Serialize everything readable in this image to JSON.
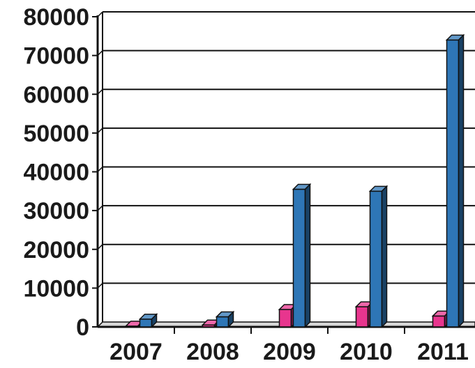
{
  "chart_data": {
    "type": "bar",
    "title": "",
    "xlabel": "",
    "ylabel": "",
    "categories": [
      "2007",
      "2008",
      "2009",
      "2010",
      "2011"
    ],
    "series": [
      {
        "color": "#e8358e",
        "values": [
          200,
          500,
          4500,
          5200,
          2800
        ]
      },
      {
        "color": "#2e76b6",
        "values": [
          2000,
          2600,
          35500,
          35000,
          74000
        ]
      }
    ],
    "ylim": [
      0,
      80000
    ],
    "yticks": [
      "0",
      "10000",
      "20000",
      "30000",
      "40000",
      "50000",
      "60000",
      "70000",
      "80000"
    ],
    "grid": true,
    "legend": "none",
    "style": "3d-column"
  }
}
